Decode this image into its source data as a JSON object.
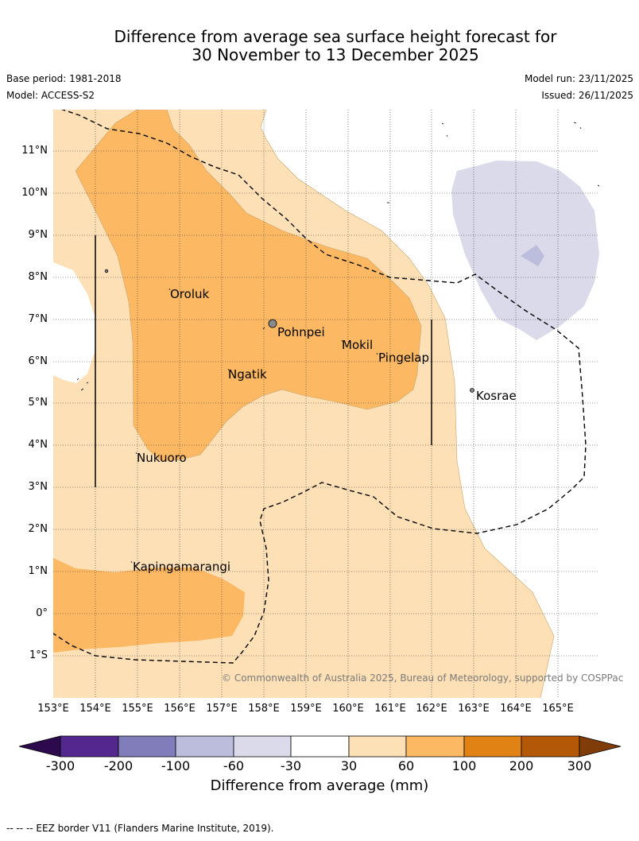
{
  "title": {
    "line1": "Difference from average sea surface height forecast for",
    "line2": "30 November to 13 December 2025"
  },
  "meta": {
    "base_period": "Base period: 1981-2018",
    "model": "Model: ACCESS-S2",
    "model_run": "Model run: 23/11/2025",
    "issued": "Issued: 26/11/2025"
  },
  "axes": {
    "lat_labels": [
      "11°N",
      "10°N",
      "9°N",
      "8°N",
      "7°N",
      "6°N",
      "5°N",
      "4°N",
      "3°N",
      "2°N",
      "1°N",
      "0°",
      "1°S"
    ],
    "lon_labels": [
      "153°E",
      "154°E",
      "155°E",
      "156°E",
      "157°E",
      "158°E",
      "159°E",
      "160°E",
      "161°E",
      "162°E",
      "163°E",
      "164°E",
      "165°E"
    ]
  },
  "places": {
    "oroluk": "Oroluk",
    "pohnpei": "Pohnpei",
    "mokil": "Mokil",
    "pingelap": "Pingelap",
    "ngatik": "Ngatik",
    "kosrae": "Kosrae",
    "nukuoro": "Nukuoro",
    "kapingamarangi": "Kapingamarangi"
  },
  "copyright": "© Commonwealth of Australia 2025, Bureau of Meteorology, supported by COSPPac",
  "colorbar": {
    "title": "Difference from average (mm)",
    "labels": [
      "-300",
      "-200",
      "-100",
      "-60",
      "-30",
      "30",
      "60",
      "100",
      "200",
      "300"
    ],
    "colors": {
      "under": "#2d0a4e",
      "c1": "#54278f",
      "c2": "#807dba",
      "c3": "#bcbddc",
      "c4": "#dadaeb",
      "c5": "#ffffff",
      "c6": "#fee0b6",
      "c7": "#fdb863",
      "c8": "#e08214",
      "c9": "#b35806",
      "over": "#7f3b08"
    }
  },
  "footer": "-- -- -- EEZ border V11 (Flanders Marine Institute, 2019)."
}
